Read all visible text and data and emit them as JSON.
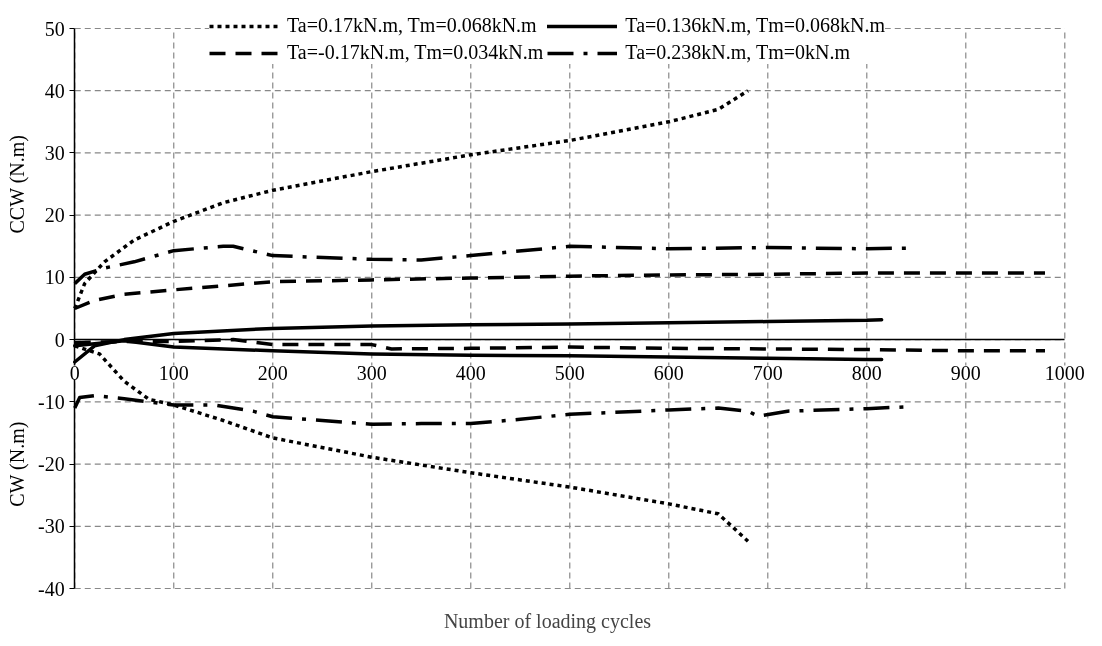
{
  "chart_data": {
    "type": "line",
    "xlabel": "Number of loading cycles",
    "ylabel": "CCW (N.m)",
    "annotations": [
      "CW (N.m)"
    ],
    "xlim": [
      0,
      1000
    ],
    "xticks": [
      0,
      100,
      200,
      300,
      400,
      500,
      600,
      700,
      800,
      900,
      1000
    ],
    "ylim": [
      -40,
      50
    ],
    "yticks": [
      -40,
      -30,
      -20,
      -10,
      0,
      10,
      20,
      30,
      40,
      50
    ],
    "grid": true,
    "legend": "top",
    "series": [
      {
        "name": "Ta=0.17kN.m, Tm=0.068kN.m",
        "color": "#000000",
        "line_style": "dotted",
        "x": [
          0,
          10,
          30,
          60,
          100,
          150,
          200,
          300,
          400,
          500,
          600,
          650,
          680
        ],
        "values": [
          5,
          9,
          12.5,
          16,
          19,
          22,
          24,
          27,
          29.7,
          32,
          35,
          37,
          40
        ]
      },
      {
        "name": "Ta=0.136kN.m, Tm=0.068kN.m",
        "color": "#000000",
        "line_style": "solid",
        "x": [
          0,
          20,
          50,
          100,
          200,
          300,
          400,
          500,
          600,
          700,
          800,
          815
        ],
        "values": [
          -3.6,
          -1,
          0,
          1,
          1.8,
          2.2,
          2.4,
          2.5,
          2.7,
          2.9,
          3.1,
          3.2
        ]
      },
      {
        "name": "Ta=-0.17kN.m, Tm=0.034kN.m",
        "color": "#000000",
        "line_style": "dashed",
        "x": [
          0,
          20,
          50,
          100,
          200,
          300,
          400,
          500,
          600,
          700,
          800,
          900,
          980
        ],
        "values": [
          5,
          6.3,
          7.3,
          8,
          9.3,
          9.6,
          9.9,
          10.2,
          10.4,
          10.5,
          10.7,
          10.7,
          10.7
        ]
      },
      {
        "name": "Ta=0.238kN.m, Tm=0kN.m",
        "color": "#000000",
        "line_style": "dashdot",
        "x": [
          0,
          10,
          30,
          60,
          100,
          150,
          160,
          200,
          300,
          350,
          400,
          500,
          600,
          700,
          800,
          840
        ],
        "values": [
          9,
          10.5,
          11.5,
          12.5,
          14.3,
          15,
          15,
          13.5,
          12.9,
          12.8,
          13.5,
          15,
          14.6,
          14.8,
          14.6,
          14.7
        ]
      },
      {
        "color": "#000000",
        "line_style": "dotted",
        "x": [
          0,
          25,
          50,
          75,
          100,
          150,
          200,
          300,
          400,
          500,
          600,
          650,
          680
        ],
        "values": [
          -1,
          -2.3,
          -6.7,
          -9.6,
          -10.5,
          -13,
          -15.8,
          -18.9,
          -21.4,
          -23.7,
          -26.4,
          -28,
          -32.4
        ]
      },
      {
        "color": "#000000",
        "line_style": "solid",
        "x": [
          0,
          50,
          100,
          200,
          300,
          400,
          500,
          600,
          700,
          800,
          815
        ],
        "values": [
          -1,
          -0.2,
          -1.2,
          -1.8,
          -2.3,
          -2.5,
          -2.6,
          -2.8,
          -3,
          -3.2,
          -3.2
        ]
      },
      {
        "color": "#000000",
        "line_style": "dashed",
        "x": [
          0,
          50,
          100,
          160,
          200,
          300,
          320,
          400,
          500,
          600,
          700,
          800,
          900,
          980
        ],
        "values": [
          -0.5,
          -0.3,
          -0.3,
          0,
          -0.8,
          -0.8,
          -1.5,
          -1.4,
          -1.2,
          -1.4,
          -1.5,
          -1.6,
          -1.8,
          -1.8
        ]
      },
      {
        "color": "#000000",
        "line_style": "dashdot",
        "x": [
          0,
          5,
          20,
          50,
          100,
          140,
          180,
          200,
          250,
          300,
          350,
          400,
          450,
          500,
          600,
          650,
          680,
          690,
          720,
          800,
          840
        ],
        "values": [
          -11,
          -9.3,
          -9,
          -9.5,
          -10.5,
          -10.5,
          -11.5,
          -12.4,
          -13,
          -13.6,
          -13.5,
          -13.5,
          -12.8,
          -12,
          -11.3,
          -11,
          -11.5,
          -12.3,
          -11.5,
          -11.1,
          -10.8
        ]
      }
    ]
  }
}
